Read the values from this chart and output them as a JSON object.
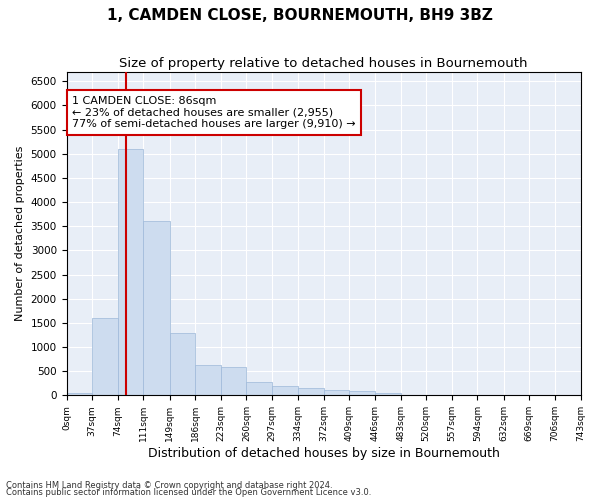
{
  "title": "1, CAMDEN CLOSE, BOURNEMOUTH, BH9 3BZ",
  "subtitle": "Size of property relative to detached houses in Bournemouth",
  "xlabel": "Distribution of detached houses by size in Bournemouth",
  "ylabel": "Number of detached properties",
  "footnote1": "Contains HM Land Registry data © Crown copyright and database right 2024.",
  "footnote2": "Contains public sector information licensed under the Open Government Licence v3.0.",
  "bar_edges": [
    0,
    37,
    74,
    111,
    149,
    186,
    223,
    260,
    297,
    334,
    372,
    409,
    446,
    483,
    520,
    557,
    594,
    632,
    669,
    706,
    743
  ],
  "bar_heights": [
    50,
    1600,
    5100,
    3600,
    1300,
    620,
    580,
    280,
    190,
    160,
    120,
    80,
    55,
    10,
    4,
    4,
    4,
    0,
    0,
    4
  ],
  "bar_color": "#cddcef",
  "bar_edge_color": "#9db8d9",
  "property_line_x": 86,
  "property_line_color": "#cc0000",
  "annotation_text": "1 CAMDEN CLOSE: 86sqm\n← 23% of detached houses are smaller (2,955)\n77% of semi-detached houses are larger (9,910) →",
  "annotation_box_color": "white",
  "annotation_box_edge_color": "#cc0000",
  "ylim": [
    0,
    6700
  ],
  "yticks": [
    0,
    500,
    1000,
    1500,
    2000,
    2500,
    3000,
    3500,
    4000,
    4500,
    5000,
    5500,
    6000,
    6500
  ],
  "background_color": "#e8eef7",
  "grid_color": "white",
  "title_fontsize": 11,
  "subtitle_fontsize": 9.5,
  "xlabel_fontsize": 9,
  "ylabel_fontsize": 8,
  "annotation_fontsize": 8
}
